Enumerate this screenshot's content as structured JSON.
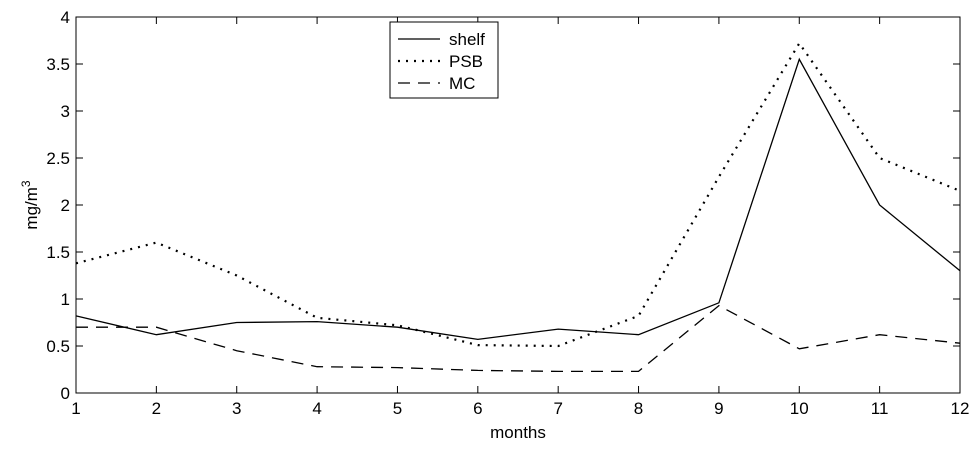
{
  "chart_data": {
    "type": "line",
    "xlabel": "months",
    "ylabel_base": "mg/m",
    "ylabel_sup": "3",
    "xlim": [
      1,
      12
    ],
    "ylim": [
      0,
      4
    ],
    "x_ticks": [
      "1",
      "2",
      "3",
      "4",
      "5",
      "6",
      "7",
      "8",
      "9",
      "10",
      "11",
      "12"
    ],
    "y_ticks": [
      "0",
      "0.5",
      "1",
      "1.5",
      "2",
      "2.5",
      "3",
      "3.5",
      "4"
    ],
    "x": [
      1,
      2,
      3,
      4,
      5,
      6,
      7,
      8,
      9,
      10,
      11,
      12
    ],
    "grid": false,
    "legend_position": "top-center",
    "series": [
      {
        "name": "shelf",
        "style": "solid",
        "values": [
          0.82,
          0.62,
          0.75,
          0.76,
          0.7,
          0.57,
          0.68,
          0.62,
          0.96,
          3.55,
          2.0,
          1.3
        ]
      },
      {
        "name": "PSB",
        "style": "dotted",
        "values": [
          1.38,
          1.6,
          1.25,
          0.8,
          0.72,
          0.51,
          0.5,
          0.82,
          2.3,
          3.72,
          2.5,
          2.15
        ]
      },
      {
        "name": "MC",
        "style": "dashed",
        "values": [
          0.7,
          0.7,
          0.45,
          0.28,
          0.27,
          0.24,
          0.23,
          0.23,
          0.93,
          0.47,
          0.62,
          0.53
        ]
      }
    ]
  }
}
